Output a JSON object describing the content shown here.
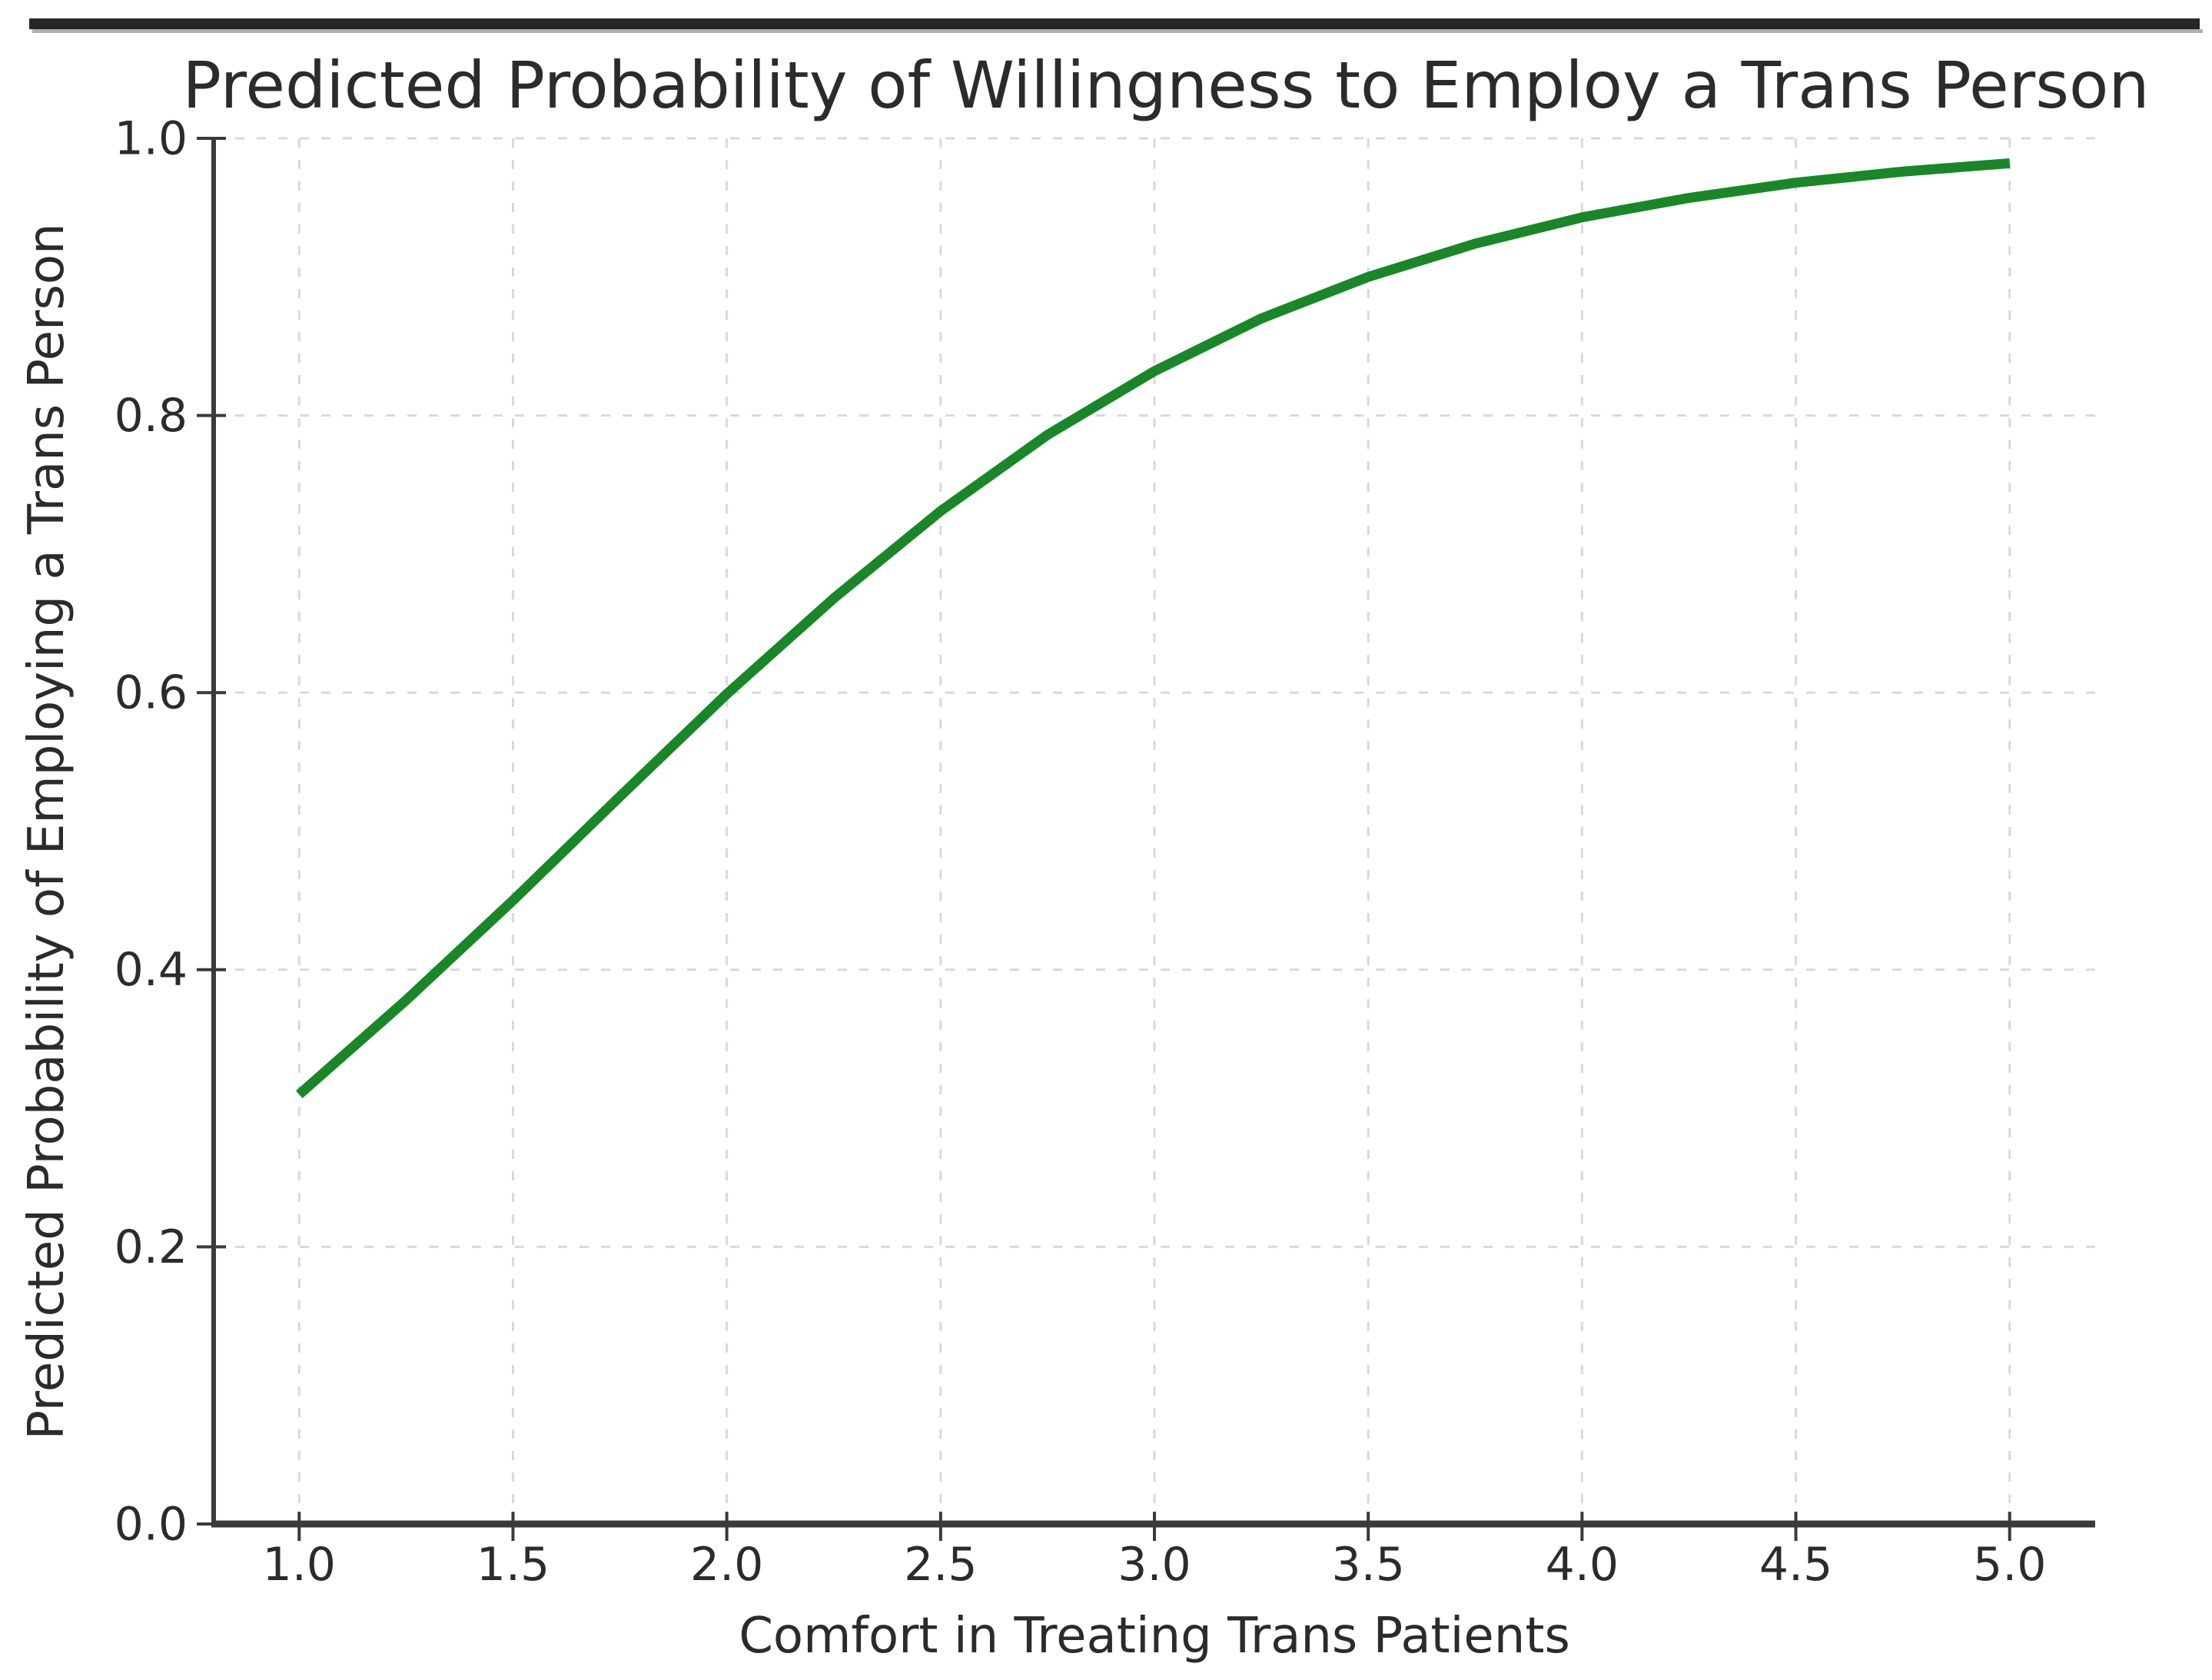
{
  "page": {
    "background": "#ffffff",
    "top_bar_color": "#262626"
  },
  "chart_data": {
    "type": "line",
    "title": "Predicted Probability of Willingness to Employ a Trans Person",
    "xlabel": "Comfort in Treating Trans Patients",
    "ylabel": "Predicted Probability of Employing a Trans Person",
    "xlim": [
      0.8,
      5.2
    ],
    "ylim": [
      0.0,
      1.0
    ],
    "xticks": [
      "1.0",
      "1.5",
      "2.0",
      "2.5",
      "3.0",
      "3.5",
      "4.0",
      "4.5",
      "5.0"
    ],
    "yticks": [
      "0.0",
      "0.2",
      "0.4",
      "0.6",
      "0.8",
      "1.0"
    ],
    "grid": true,
    "grid_style": "dashed",
    "legend": false,
    "line_color": "#198728",
    "text_color": "#2b2b2b",
    "grid_color": "#d9d9d9",
    "spine_color": "#3a3a3a",
    "series": [
      {
        "name": "predicted-probability-curve",
        "x": [
          1.0,
          1.25,
          1.5,
          1.75,
          2.0,
          2.25,
          2.5,
          2.75,
          3.0,
          3.25,
          3.5,
          3.75,
          4.0,
          4.25,
          4.5,
          4.75,
          5.0
        ],
        "y": [
          0.31,
          0.378,
          0.45,
          0.525,
          0.599,
          0.668,
          0.731,
          0.786,
          0.832,
          0.87,
          0.9,
          0.924,
          0.943,
          0.957,
          0.968,
          0.976,
          0.982
        ]
      }
    ]
  }
}
